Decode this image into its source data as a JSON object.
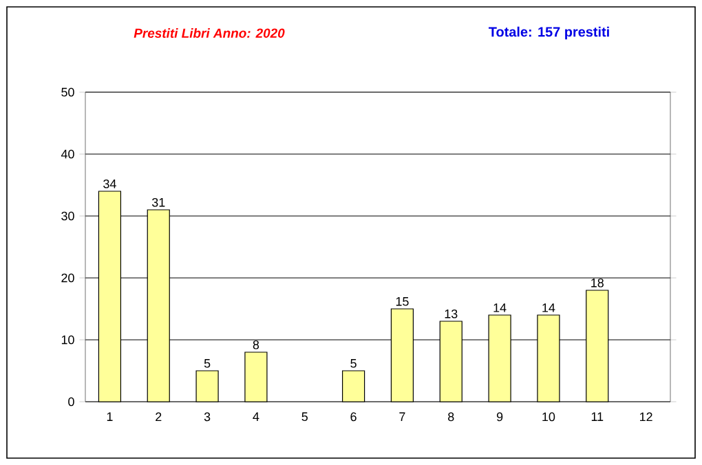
{
  "chart_data": {
    "type": "bar",
    "title": "Prestiti Libri Anno: 2020",
    "subtitle": "Totale:   157   prestiti",
    "categories": [
      "1",
      "2",
      "3",
      "4",
      "5",
      "6",
      "7",
      "8",
      "9",
      "10",
      "11",
      "12"
    ],
    "values": [
      34,
      31,
      5,
      8,
      null,
      5,
      15,
      13,
      14,
      14,
      18,
      null
    ],
    "color": "#ffff99",
    "ylim": [
      0,
      50
    ],
    "yticks": [
      0,
      10,
      20,
      30,
      40,
      50
    ],
    "grid": "y",
    "data_labels": true
  }
}
